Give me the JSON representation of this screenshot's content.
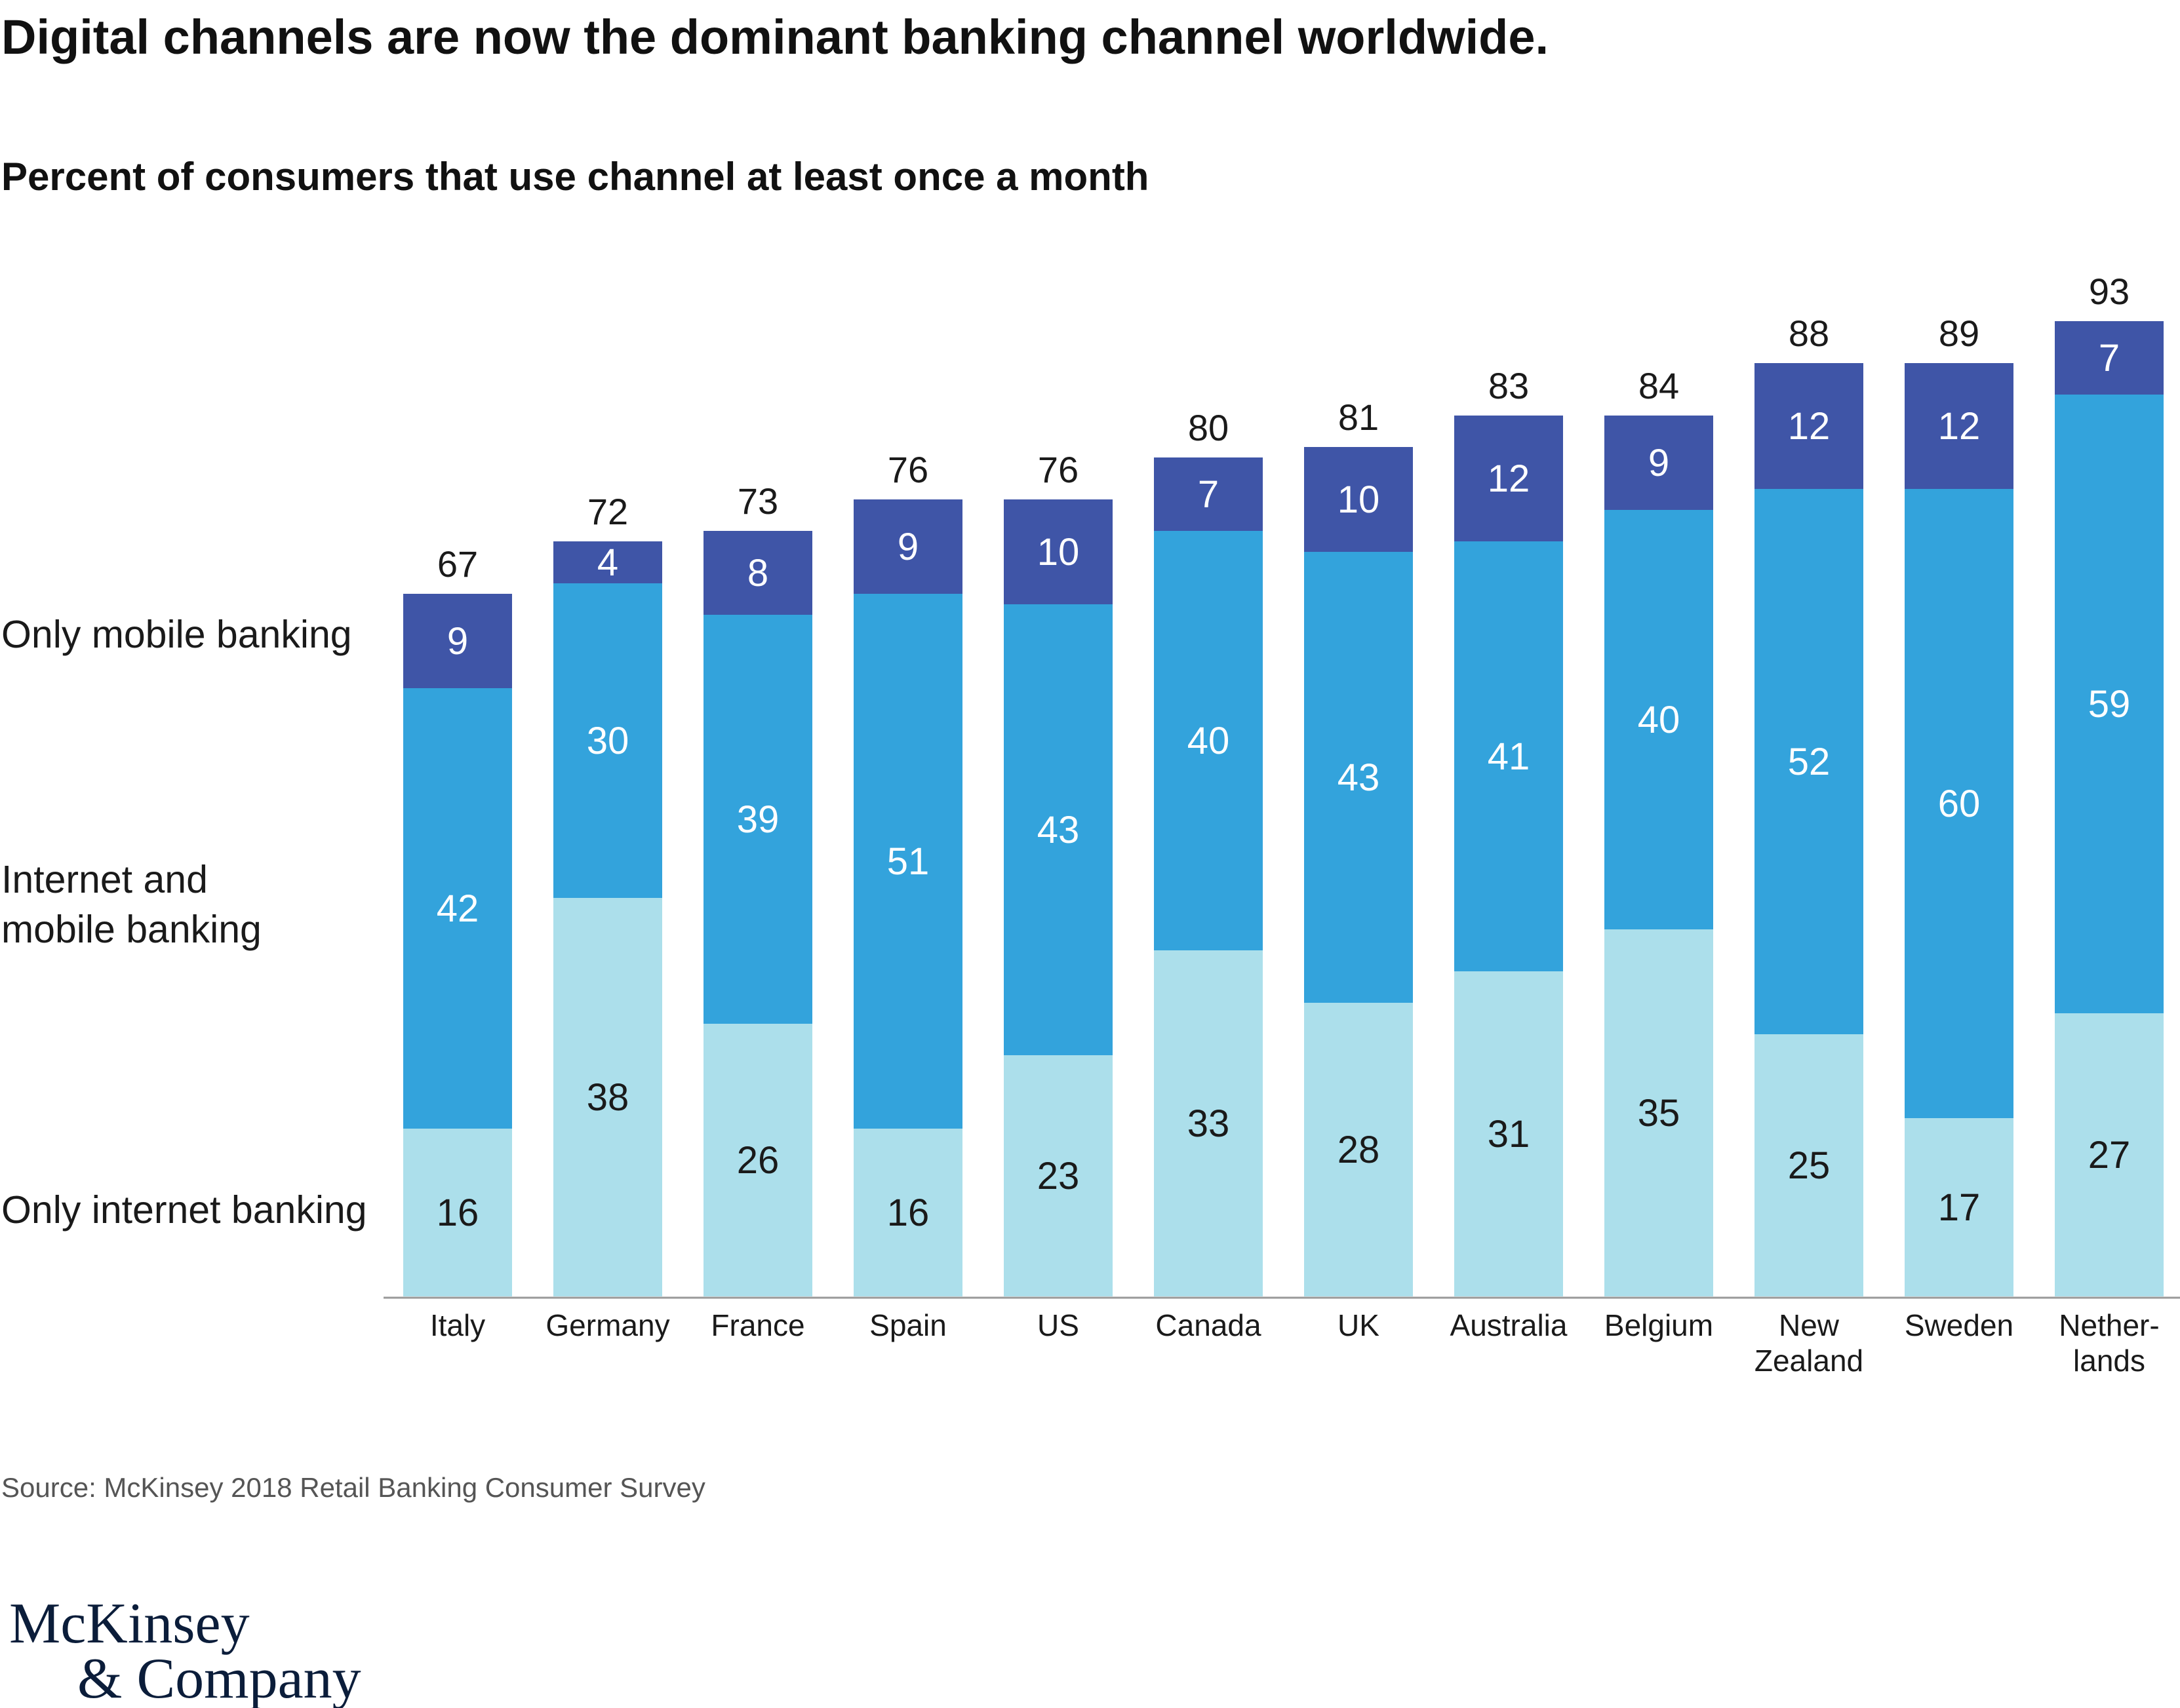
{
  "title": "Digital channels are now the dominant banking channel worldwide.",
  "subtitle": "Percent of consumers that use channel at least once a month",
  "source": "Source: McKinsey 2018 Retail Banking Consumer Survey",
  "logo": {
    "line1": "McKinsey",
    "line2": "& Company"
  },
  "legend": {
    "mobile_only": "Only mobile banking",
    "both": [
      "Internet and",
      "mobile banking"
    ],
    "internet_only": "Only internet banking"
  },
  "colors": {
    "mobile_only": "#3f55a7",
    "both": "#33a3dc",
    "internet_only": "#acdfeb",
    "axis": "#999999"
  },
  "chart_data": {
    "type": "bar",
    "stacked": true,
    "categories": [
      [
        "Italy"
      ],
      [
        "Germany"
      ],
      [
        "France"
      ],
      [
        "Spain"
      ],
      [
        "US"
      ],
      [
        "Canada"
      ],
      [
        "UK"
      ],
      [
        "Australia"
      ],
      [
        "Belgium"
      ],
      [
        "New",
        "Zealand"
      ],
      [
        "Sweden"
      ],
      [
        "Nether-",
        "lands"
      ]
    ],
    "series": [
      {
        "name": "Only internet banking",
        "values": [
          16,
          38,
          26,
          16,
          23,
          33,
          28,
          31,
          35,
          25,
          17,
          27
        ]
      },
      {
        "name": "Internet and mobile banking",
        "values": [
          42,
          30,
          39,
          51,
          43,
          40,
          43,
          41,
          40,
          52,
          60,
          59
        ]
      },
      {
        "name": "Only mobile banking",
        "values": [
          9,
          4,
          8,
          9,
          10,
          7,
          10,
          12,
          9,
          12,
          12,
          7
        ]
      }
    ],
    "totals": [
      67,
      72,
      73,
      76,
      76,
      80,
      81,
      83,
      84,
      88,
      89,
      93
    ],
    "ylim": [
      0,
      100
    ]
  }
}
